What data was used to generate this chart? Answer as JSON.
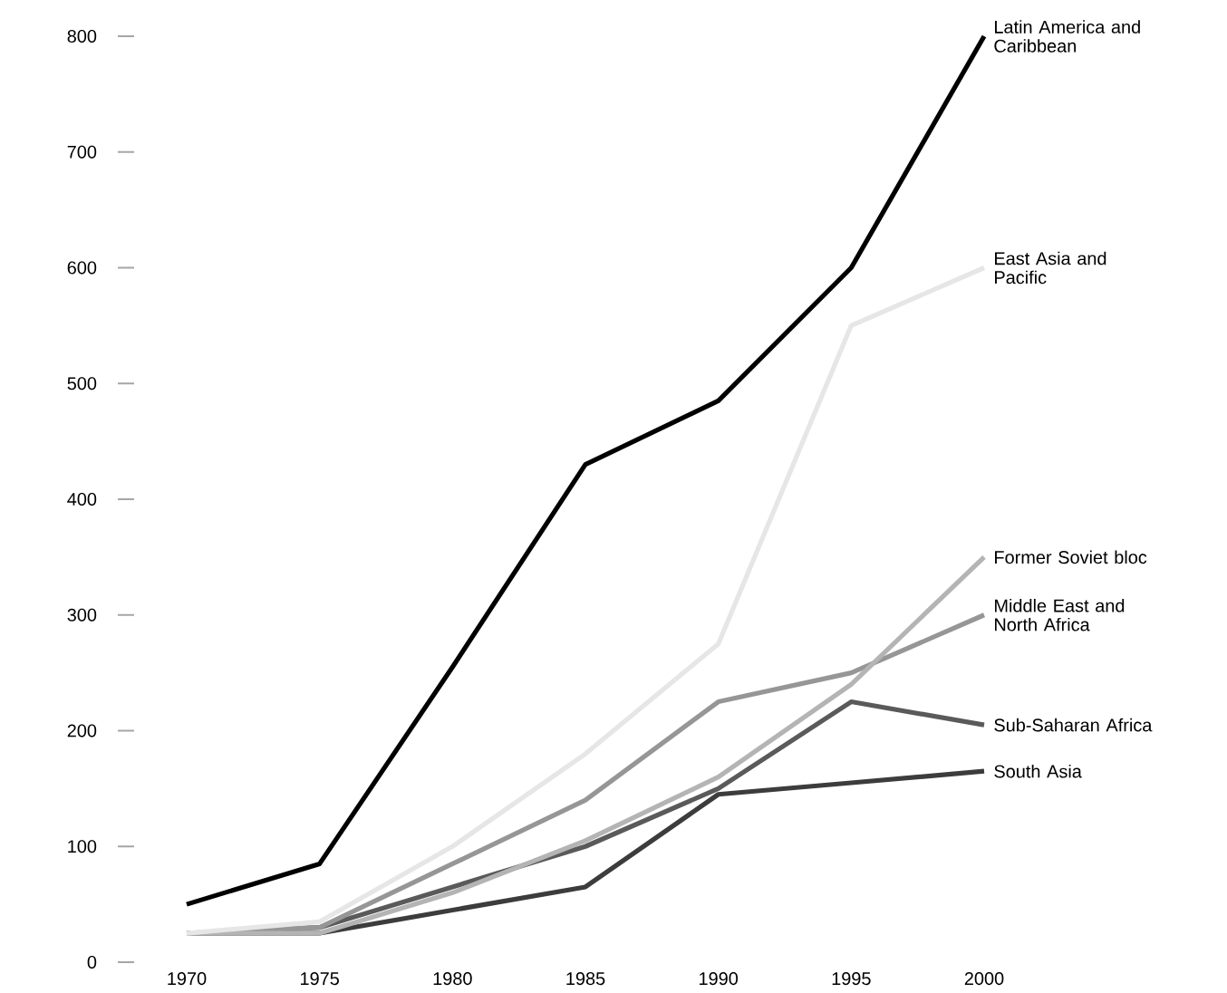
{
  "chart_data": {
    "type": "line",
    "x": [
      1970,
      1975,
      1980,
      1985,
      1990,
      1995,
      2000
    ],
    "xlim": [
      1970,
      2000
    ],
    "xticks": [
      1970,
      1975,
      1980,
      1985,
      1990,
      1995,
      2000
    ],
    "ylim": [
      0,
      800
    ],
    "yticks": [
      0,
      100,
      200,
      300,
      400,
      500,
      600,
      700,
      800
    ],
    "series": [
      {
        "name": "Latin America and Caribbean",
        "color": "#000000",
        "values": [
          50,
          85,
          255,
          430,
          485,
          600,
          800
        ]
      },
      {
        "name": "East Asia and Pacific",
        "color": "#e6e6e6",
        "values": [
          25,
          35,
          100,
          180,
          275,
          550,
          600
        ]
      },
      {
        "name": "Former Soviet bloc",
        "color": "#b4b4b4",
        "values": [
          25,
          25,
          60,
          105,
          160,
          240,
          350
        ]
      },
      {
        "name": "Middle East and North Africa",
        "color": "#969696",
        "values": [
          25,
          30,
          85,
          140,
          225,
          250,
          300
        ]
      },
      {
        "name": "Sub-Saharan Africa",
        "color": "#5a5a5a",
        "values": [
          25,
          30,
          65,
          100,
          150,
          225,
          205
        ]
      },
      {
        "name": "South Asia",
        "color": "#3c3c3c",
        "values": [
          25,
          25,
          45,
          65,
          145,
          155,
          165
        ]
      }
    ]
  }
}
